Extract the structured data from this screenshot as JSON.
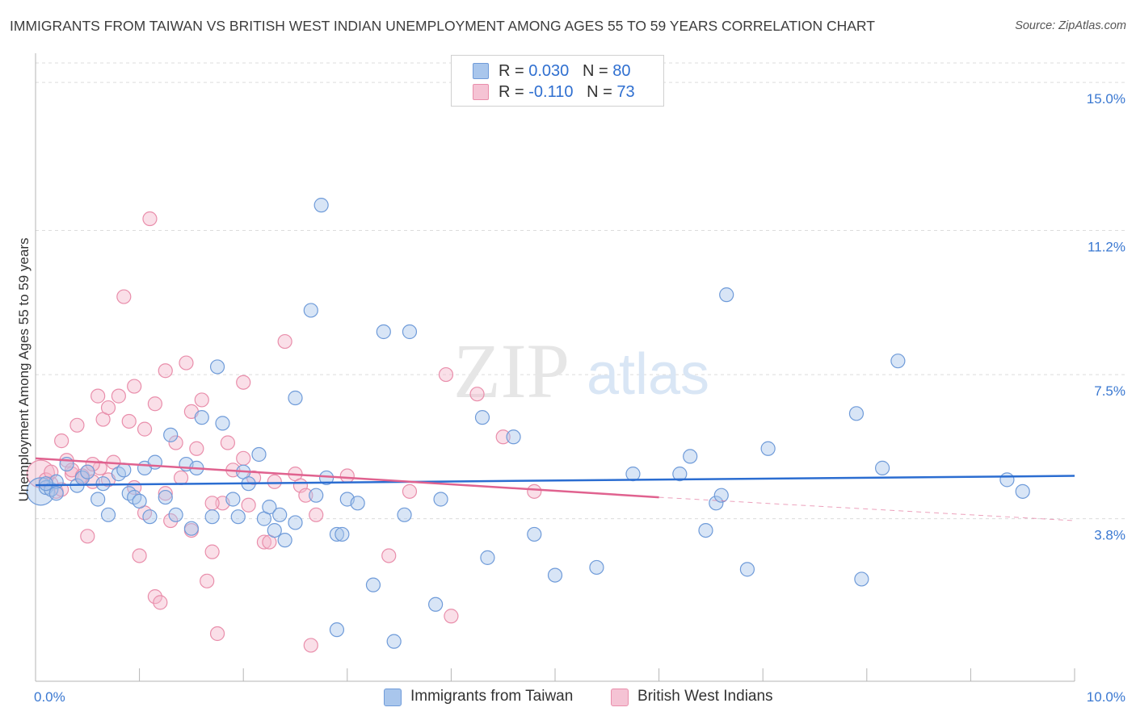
{
  "title": "IMMIGRANTS FROM TAIWAN VS BRITISH WEST INDIAN UNEMPLOYMENT AMONG AGES 55 TO 59 YEARS CORRELATION CHART",
  "source": "Source: ZipAtlas.com",
  "watermark": {
    "zip": "ZIP",
    "atlas": "atlas"
  },
  "legend": {
    "rows": [
      {
        "r_label": "R = ",
        "r_value": "0.030",
        "n_label": "N = ",
        "n_value": "80"
      },
      {
        "r_label": "R = ",
        "r_value": "-0.110",
        "n_label": "N = ",
        "n_value": "73"
      }
    ]
  },
  "bottom_legend": {
    "taiwan": "Immigrants from Taiwan",
    "bwi": "British West Indians"
  },
  "colors": {
    "blue_fill": "#a9c6ec",
    "blue_stroke": "#6f9bd9",
    "blue_line": "#2b6dd1",
    "pink_fill": "#f5b7cb",
    "pink_stroke": "#e98eab",
    "pink_line": "#e0628f",
    "axis_text_blue": "#3a78d1",
    "grid": "#dcdcdc"
  },
  "chart_data": {
    "type": "scatter",
    "title": "IMMIGRANTS FROM TAIWAN VS BRITISH WEST INDIAN UNEMPLOYMENT AMONG AGES 55 TO 59 YEARS CORRELATION CHART",
    "xlabel": "",
    "ylabel": "Unemployment Among Ages 55 to 59 years",
    "xlim": [
      0,
      10
    ],
    "ylim": [
      0,
      15.5
    ],
    "x_tick_labels": [
      {
        "value": 0,
        "label": "0.0%"
      },
      {
        "value": 10,
        "label": "10.0%"
      }
    ],
    "y_tick_labels": [
      {
        "value": 3.8,
        "label": "3.8%"
      },
      {
        "value": 7.5,
        "label": "7.5%"
      },
      {
        "value": 11.2,
        "label": "11.2%"
      },
      {
        "value": 15.0,
        "label": "15.0%"
      }
    ],
    "x_minor_ticks": [
      1,
      2,
      3,
      4,
      5,
      6,
      7,
      8,
      9,
      10
    ],
    "series": [
      {
        "name": "Immigrants from Taiwan",
        "color": "blue",
        "R": 0.03,
        "N": 80,
        "trend": {
          "x_start": 0.0,
          "y_start": 4.66,
          "x_end": 10.0,
          "y_end": 4.9
        },
        "points": [
          [
            0.05,
            4.5,
            "big"
          ],
          [
            0.1,
            4.6
          ],
          [
            0.15,
            4.55
          ],
          [
            0.2,
            4.75
          ],
          [
            0.3,
            5.2
          ],
          [
            0.4,
            4.65
          ],
          [
            0.45,
            4.85
          ],
          [
            0.5,
            5.0
          ],
          [
            0.6,
            4.3
          ],
          [
            0.65,
            4.7
          ],
          [
            0.7,
            3.9
          ],
          [
            0.8,
            4.95
          ],
          [
            0.85,
            5.05
          ],
          [
            0.9,
            4.45
          ],
          [
            0.95,
            4.35
          ],
          [
            1.0,
            4.25
          ],
          [
            1.05,
            5.1
          ],
          [
            1.1,
            3.85
          ],
          [
            1.15,
            5.25
          ],
          [
            1.25,
            4.35
          ],
          [
            1.3,
            5.95
          ],
          [
            1.35,
            3.9
          ],
          [
            1.45,
            5.2
          ],
          [
            1.5,
            3.55
          ],
          [
            1.55,
            5.1
          ],
          [
            1.6,
            6.4
          ],
          [
            1.7,
            3.85
          ],
          [
            1.75,
            7.7
          ],
          [
            1.8,
            6.25
          ],
          [
            1.9,
            4.3
          ],
          [
            1.95,
            3.85
          ],
          [
            2.0,
            5.0
          ],
          [
            2.05,
            4.7
          ],
          [
            2.15,
            5.45
          ],
          [
            2.2,
            3.8
          ],
          [
            2.25,
            4.1
          ],
          [
            2.3,
            3.5
          ],
          [
            2.35,
            3.9
          ],
          [
            2.4,
            3.25
          ],
          [
            2.5,
            3.7
          ],
          [
            2.5,
            6.9
          ],
          [
            2.65,
            9.15
          ],
          [
            2.7,
            4.4
          ],
          [
            2.75,
            11.85
          ],
          [
            2.8,
            4.85
          ],
          [
            2.9,
            0.95
          ],
          [
            2.9,
            3.4
          ],
          [
            2.95,
            3.4
          ],
          [
            3.0,
            4.3
          ],
          [
            3.1,
            4.2
          ],
          [
            3.25,
            2.1
          ],
          [
            3.35,
            8.6
          ],
          [
            3.45,
            0.65
          ],
          [
            3.55,
            3.9
          ],
          [
            3.6,
            8.6
          ],
          [
            3.85,
            1.6
          ],
          [
            3.9,
            4.3
          ],
          [
            4.3,
            6.4
          ],
          [
            4.35,
            2.8
          ],
          [
            4.6,
            5.9
          ],
          [
            4.8,
            3.4
          ],
          [
            5.0,
            2.35
          ],
          [
            5.4,
            2.55
          ],
          [
            5.75,
            4.95
          ],
          [
            6.2,
            4.95
          ],
          [
            6.3,
            5.4
          ],
          [
            6.45,
            3.5
          ],
          [
            6.55,
            4.2
          ],
          [
            6.6,
            4.4
          ],
          [
            6.65,
            9.55
          ],
          [
            6.85,
            2.5
          ],
          [
            7.05,
            5.6
          ],
          [
            7.9,
            6.5
          ],
          [
            7.95,
            2.25
          ],
          [
            8.15,
            5.1
          ],
          [
            8.3,
            7.85
          ],
          [
            9.35,
            4.8
          ],
          [
            9.5,
            4.5
          ],
          [
            0.2,
            4.45
          ],
          [
            0.1,
            4.7
          ]
        ]
      },
      {
        "name": "British West Indians",
        "color": "pink",
        "R": -0.11,
        "N": 73,
        "trend": {
          "x_start": 0.0,
          "y_start": 5.35,
          "x_end": 6.0,
          "y_end": 4.35
        },
        "trend_dashed": {
          "x_start": 6.0,
          "y_start": 4.35,
          "x_end": 10.0,
          "y_end": 3.75
        },
        "points": [
          [
            0.05,
            4.95,
            "big"
          ],
          [
            0.1,
            4.8
          ],
          [
            0.15,
            4.7
          ],
          [
            0.2,
            4.5
          ],
          [
            0.25,
            5.8
          ],
          [
            0.3,
            5.3
          ],
          [
            0.35,
            4.95
          ],
          [
            0.4,
            6.2
          ],
          [
            0.45,
            4.85
          ],
          [
            0.5,
            5.0
          ],
          [
            0.5,
            3.35
          ],
          [
            0.55,
            4.75
          ],
          [
            0.6,
            6.95
          ],
          [
            0.62,
            5.1
          ],
          [
            0.65,
            6.35
          ],
          [
            0.7,
            6.65
          ],
          [
            0.75,
            5.25
          ],
          [
            0.8,
            6.95
          ],
          [
            0.85,
            9.5
          ],
          [
            0.9,
            6.3
          ],
          [
            0.95,
            7.2
          ],
          [
            1.0,
            2.85
          ],
          [
            1.05,
            6.1
          ],
          [
            1.1,
            11.5
          ],
          [
            1.15,
            6.75
          ],
          [
            1.15,
            1.8
          ],
          [
            1.2,
            1.65
          ],
          [
            1.25,
            7.6
          ],
          [
            1.3,
            3.75
          ],
          [
            1.35,
            5.75
          ],
          [
            1.4,
            4.85
          ],
          [
            1.45,
            7.8
          ],
          [
            1.5,
            6.55
          ],
          [
            1.55,
            5.6
          ],
          [
            1.6,
            6.85
          ],
          [
            1.65,
            2.2
          ],
          [
            1.7,
            2.95
          ],
          [
            1.75,
            0.85
          ],
          [
            1.8,
            4.2
          ],
          [
            1.85,
            5.75
          ],
          [
            1.9,
            5.05
          ],
          [
            2.0,
            7.3
          ],
          [
            2.05,
            4.15
          ],
          [
            2.1,
            4.85
          ],
          [
            2.2,
            3.2
          ],
          [
            2.25,
            3.2
          ],
          [
            2.3,
            4.75
          ],
          [
            2.4,
            8.35
          ],
          [
            2.5,
            4.95
          ],
          [
            2.55,
            4.65
          ],
          [
            2.6,
            4.4
          ],
          [
            2.65,
            0.55
          ],
          [
            2.7,
            3.9
          ],
          [
            3.0,
            4.9
          ],
          [
            3.4,
            2.85
          ],
          [
            3.6,
            4.5
          ],
          [
            3.95,
            7.5
          ],
          [
            4.0,
            1.3
          ],
          [
            4.25,
            7.0
          ],
          [
            4.5,
            5.9
          ],
          [
            4.8,
            4.5
          ],
          [
            0.35,
            5.05
          ],
          [
            0.55,
            5.2
          ],
          [
            0.95,
            4.6
          ],
          [
            1.05,
            3.95
          ],
          [
            1.25,
            4.45
          ],
          [
            1.5,
            3.5
          ],
          [
            0.25,
            4.55
          ],
          [
            0.15,
            5.0
          ],
          [
            0.45,
            4.9
          ],
          [
            1.7,
            4.2
          ],
          [
            2.0,
            5.35
          ],
          [
            0.7,
            4.8
          ]
        ]
      }
    ]
  }
}
